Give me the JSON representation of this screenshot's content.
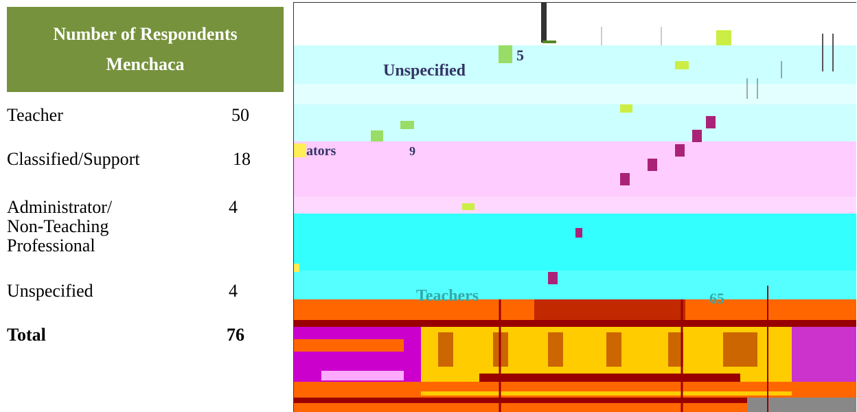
{
  "table": {
    "header_line1": "Number of Respondents",
    "header_line2": "Menchaca",
    "rows": [
      {
        "label": "Teacher",
        "value": "50"
      },
      {
        "label": "Classified/Support",
        "value": "18"
      },
      {
        "label_line1": "Administrator/",
        "label_line2": "Non-Teaching",
        "label_line3": "Professional",
        "value": "4"
      },
      {
        "label": "Unspecified",
        "value": "4"
      }
    ],
    "total": {
      "label": "Total",
      "value": "76"
    }
  },
  "chart_image": {
    "visible_labels": {
      "unspecified": "Unspecified",
      "unspecified_value": "5",
      "administrators_fragment": "ators",
      "administrators_value": "9",
      "teachers": "Teachers",
      "teachers_value": "65"
    },
    "colors": {
      "header_green": "#76923c",
      "light_cyan": "#ccffff",
      "pink": "#ffccff",
      "cyan": "#33ffff",
      "orange": "#ff6600",
      "dark_red": "#990000",
      "yellow": "#ffcc00",
      "magenta": "#cc00cc",
      "teal_text": "#33aaaa",
      "navy_text": "#333366"
    }
  }
}
